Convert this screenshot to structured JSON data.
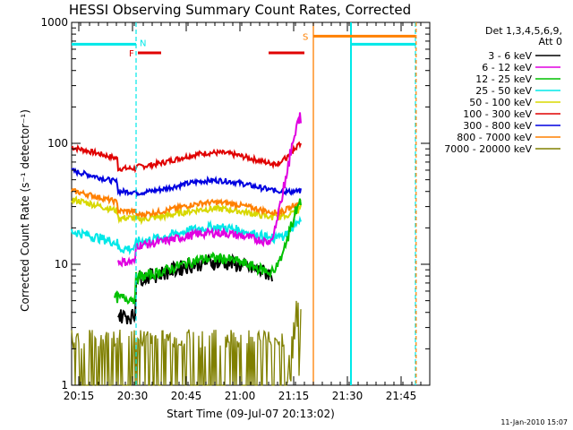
{
  "chart_data": {
    "type": "line",
    "title": "HESSI Observing Summary Count Rates, Corrected",
    "xlabel": "Start Time (09-Jul-07 20:13:02)",
    "ylabel": "Corrected Count Rate (s⁻¹ detector⁻¹)",
    "yscale": "log",
    "ylim": [
      1,
      1000
    ],
    "xlim_minutes": [
      0,
      100
    ],
    "x_tick_labels": [
      "20:15",
      "20:30",
      "20:45",
      "21:00",
      "21:15",
      "21:30",
      "21:45"
    ],
    "y_tick_labels": [
      "1",
      "10",
      "100",
      "1000"
    ],
    "legend_header": [
      "Det 1,3,4,5,6,9,",
      "Att 0"
    ],
    "series": [
      {
        "name": "3 - 6 keV",
        "color": "#000000"
      },
      {
        "name": "6 - 12 keV",
        "color": "#e000e0"
      },
      {
        "name": "12 - 25 keV",
        "color": "#00c000"
      },
      {
        "name": "25 - 50 keV",
        "color": "#00e8e8"
      },
      {
        "name": "50 - 100 keV",
        "color": "#d8d800"
      },
      {
        "name": "100 - 300 keV",
        "color": "#e00000"
      },
      {
        "name": "300 - 800 keV",
        "color": "#0000e0"
      },
      {
        "name": "800 - 7000 keV",
        "color": "#ff8000"
      },
      {
        "name": "7000 - 20000 keV",
        "color": "#808000"
      }
    ],
    "flags": {
      "N": {
        "label": "N",
        "color": "#00e8e8"
      },
      "F": {
        "label": "F",
        "color": "#e00000"
      },
      "S": {
        "label": "S",
        "color": "#ff8000"
      }
    }
  },
  "footer_date": "11-Jan-2010 15:07"
}
